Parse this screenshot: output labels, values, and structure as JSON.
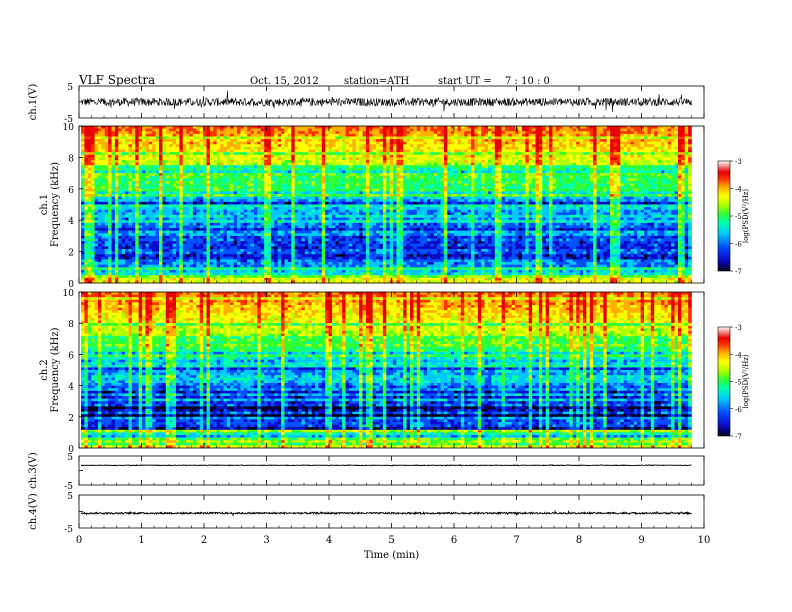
{
  "header": {
    "title": "VLF  Spectra",
    "date": "Oct. 15, 2012",
    "station": "station=ATH",
    "start_label": "start  UT  =",
    "start_time": "7  : 10 : 0"
  },
  "colors": {
    "spectrogram_palette": [
      "#00001a",
      "#0a0ac8",
      "#0050ff",
      "#00c8ff",
      "#00ffaa",
      "#30ff30",
      "#b0ff00",
      "#ffff00",
      "#ffb000",
      "#ff3000",
      "#e60000",
      "#ffffff"
    ]
  },
  "chart_data": [
    {
      "type": "line",
      "name": "ch1-waveform",
      "ylabel": "ch.1(V)",
      "ylim": [
        -5,
        5
      ],
      "yticks": [
        "5",
        "-5"
      ],
      "xlim": [
        0,
        10
      ],
      "mean": 0,
      "amplitude": 1.3
    },
    {
      "type": "heatmap",
      "name": "ch1-spectrogram",
      "ylabel": "ch.1\nFrequency  (kHz)",
      "ylim": [
        0,
        10
      ],
      "yticks": [
        "0",
        "2",
        "4",
        "6",
        "8",
        "10"
      ],
      "xlim": [
        0,
        9.8
      ],
      "colorbar": {
        "label": "log(PSD(V²/Hz)",
        "range": [
          -7,
          -3
        ],
        "ticks": [
          "-3",
          "-4",
          "-5",
          "-6",
          "-7"
        ]
      }
    },
    {
      "type": "heatmap",
      "name": "ch2-spectrogram",
      "ylabel": "ch.2\nFrequency  (kHz)",
      "ylim": [
        0,
        10
      ],
      "yticks": [
        "0",
        "2",
        "4",
        "6",
        "8",
        "10"
      ],
      "xlim": [
        0,
        9.8
      ],
      "colorbar": {
        "label": "log(PSD(V²/Hz)",
        "range": [
          -7,
          -3
        ],
        "ticks": [
          "-3",
          "-4",
          "-5",
          "-6",
          "-7"
        ]
      }
    },
    {
      "type": "line",
      "name": "ch3-waveform",
      "ylabel": "ch.3(V)",
      "ylim": [
        -5,
        5
      ],
      "yticks": [
        "5",
        "-5"
      ],
      "xlim": [
        0,
        10
      ],
      "mean": 1.8,
      "amplitude": 0.1
    },
    {
      "type": "line",
      "name": "ch4-waveform",
      "ylabel": "ch.4(V)",
      "ylim": [
        -5,
        5
      ],
      "yticks": [
        "5",
        "-5"
      ],
      "xlim": [
        0,
        10
      ],
      "mean": -0.5,
      "amplitude": 0.25
    }
  ],
  "xaxis": {
    "label": "Time  (min)",
    "range": [
      0,
      10
    ],
    "ticks": [
      "0",
      "1",
      "2",
      "3",
      "4",
      "5",
      "6",
      "7",
      "8",
      "9",
      "10"
    ]
  }
}
